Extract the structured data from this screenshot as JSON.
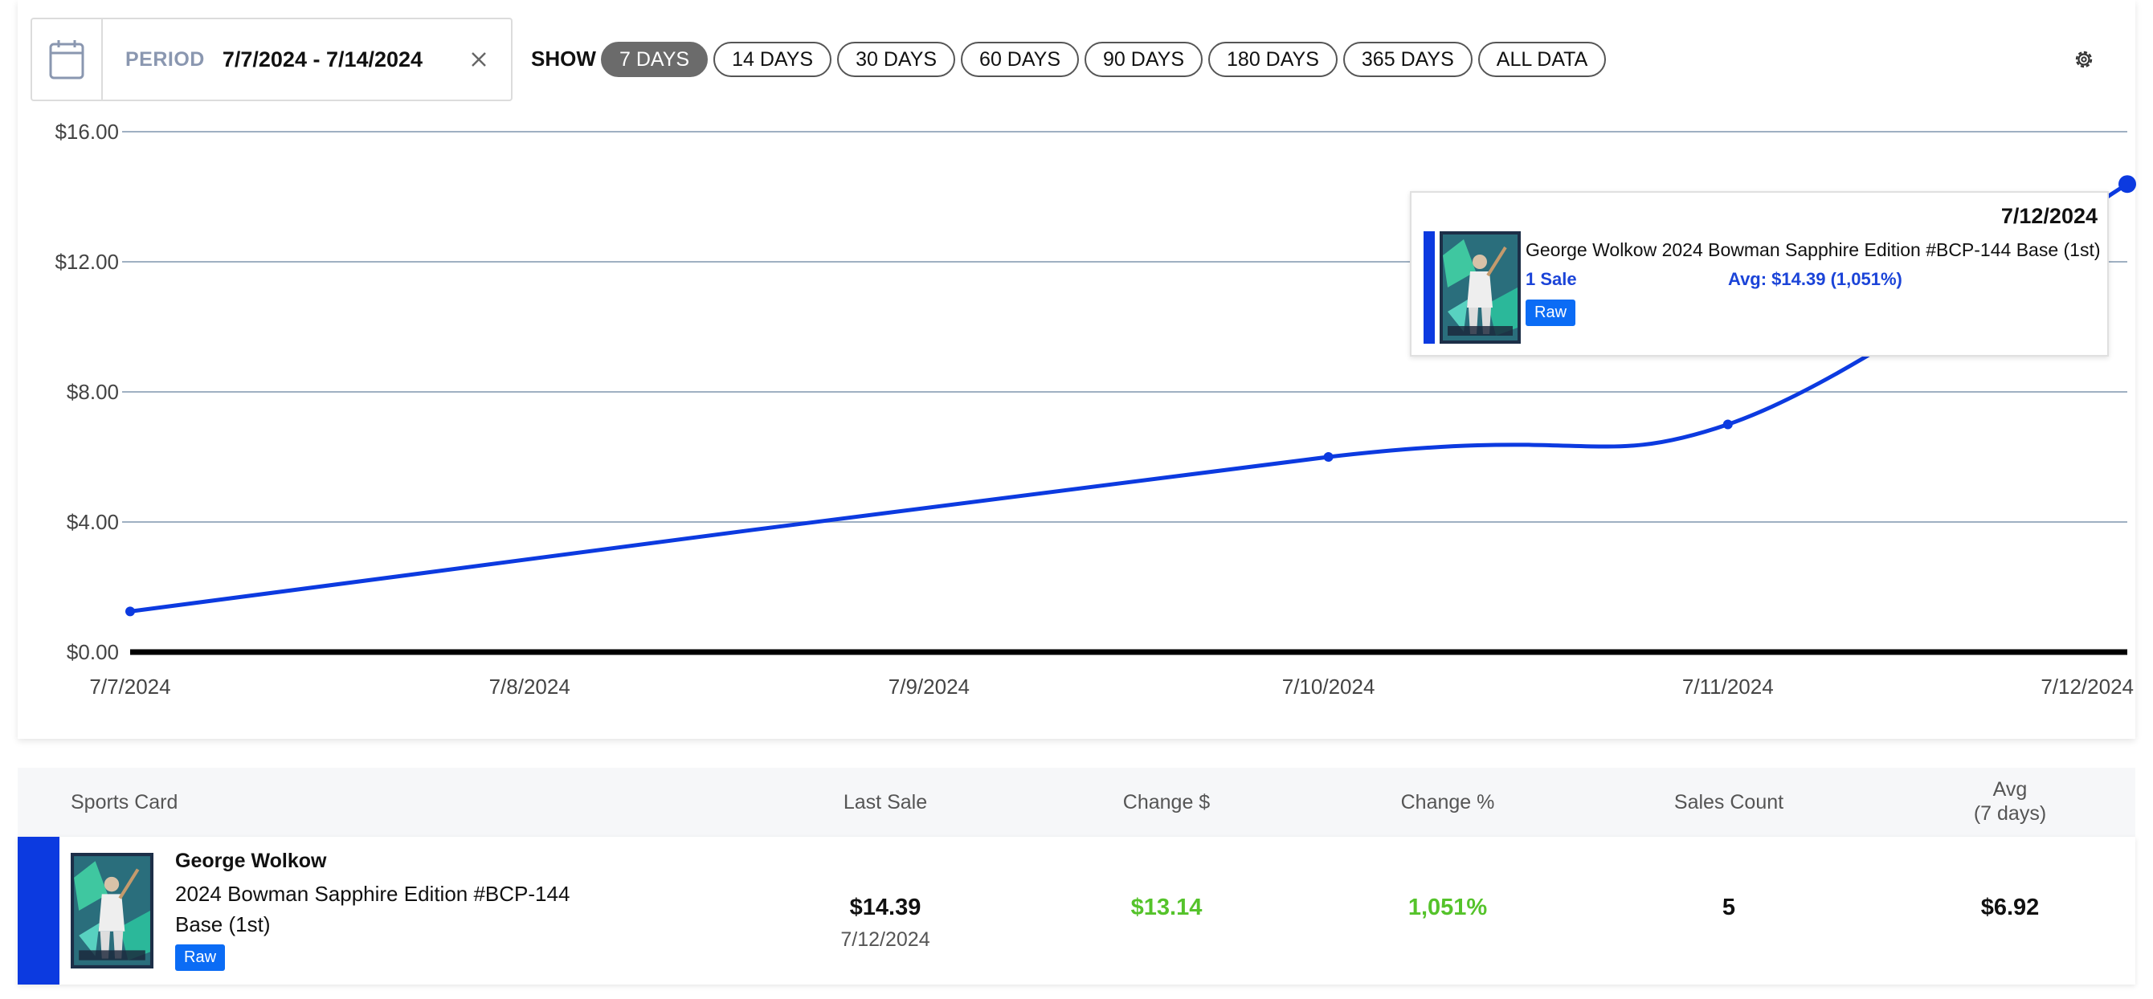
{
  "filters": {
    "period_label": "PERIOD",
    "period_value": "7/7/2024 - 7/14/2024",
    "show_label": "SHOW",
    "ranges": [
      "7 DAYS",
      "14 DAYS",
      "30 DAYS",
      "60 DAYS",
      "90 DAYS",
      "180 DAYS",
      "365 DAYS",
      "ALL DATA"
    ],
    "active_range": "7 DAYS"
  },
  "chart_data": {
    "type": "line",
    "x": [
      "7/7/2024",
      "7/10/2024",
      "7/11/2024",
      "7/12/2024"
    ],
    "values": [
      1.25,
      6.0,
      7.0,
      14.39
    ],
    "tick_labels_x": [
      "7/7/2024",
      "7/8/2024",
      "7/9/2024",
      "7/10/2024",
      "7/11/2024",
      "7/12/2024"
    ],
    "tick_labels_y": [
      "$0.00",
      "$4.00",
      "$8.00",
      "$12.00",
      "$16.00"
    ],
    "ylim": [
      0,
      16
    ],
    "line_color": "#0c3ae0",
    "grid": true
  },
  "tooltip": {
    "date": "7/12/2024",
    "title": "George Wolkow 2024 Bowman Sapphire Edition #BCP-144 Base (1st)",
    "sales": "1 Sale",
    "avg": "Avg: $14.39 (1,051%)",
    "badge": "Raw"
  },
  "table": {
    "headers": {
      "card": "Sports Card",
      "last_sale": "Last Sale",
      "change_dollar": "Change $",
      "change_pct": "Change %",
      "sales_count": "Sales Count",
      "avg_line1": "Avg",
      "avg_line2": "(7 days)"
    },
    "row": {
      "player": "George Wolkow",
      "card": "2024 Bowman Sapphire Edition #BCP-144 Base (1st)",
      "badge": "Raw",
      "last_sale": "$14.39",
      "last_sale_date": "7/12/2024",
      "change_dollar": "$13.14",
      "change_pct": "1,051%",
      "sales_count": "5",
      "avg": "$6.92"
    }
  },
  "colors": {
    "accent": "#0c3ae0",
    "badge": "#0b6cf5",
    "positive": "#55c32b"
  }
}
